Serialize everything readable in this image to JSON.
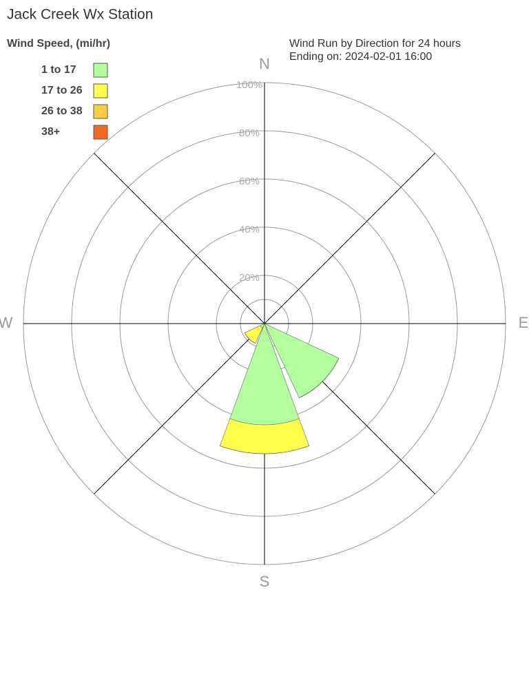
{
  "chart_data": {
    "type": "windrose",
    "title": "Jack Creek Wx Station",
    "legend_title": "Wind Speed, (mi/hr)",
    "subtitle": [
      "Wind Run by Direction for 24 hours",
      "Ending on: 2024-02-01 16:00"
    ],
    "categories": [
      "N",
      null,
      "E",
      null,
      "S",
      null,
      "W",
      null
    ],
    "series": [
      {
        "name": "1 to 17",
        "color": "#b3ff9e",
        "values": [
          0,
          0,
          0,
          34,
          42,
          2,
          0,
          0
        ]
      },
      {
        "name": "17 to 26",
        "color": "#ffff4d",
        "values": [
          0,
          0,
          0,
          0,
          12,
          7,
          0,
          0
        ]
      },
      {
        "name": "26 to 38",
        "color": "#ffcc44",
        "values": [
          0,
          0,
          0,
          0,
          0,
          0,
          0,
          0
        ]
      },
      {
        "name": "38+",
        "color": "#ee6a22",
        "values": [
          0,
          0,
          0,
          0,
          0,
          0,
          0,
          0
        ]
      }
    ],
    "rlim": [
      0,
      100
    ],
    "rticks": [
      {
        "value": 20,
        "label": "20%"
      },
      {
        "value": 40,
        "label": "40%"
      },
      {
        "value": 60,
        "label": "60%"
      },
      {
        "value": 80,
        "label": "80%"
      },
      {
        "value": 100,
        "label": "100%"
      }
    ],
    "grid": true
  }
}
